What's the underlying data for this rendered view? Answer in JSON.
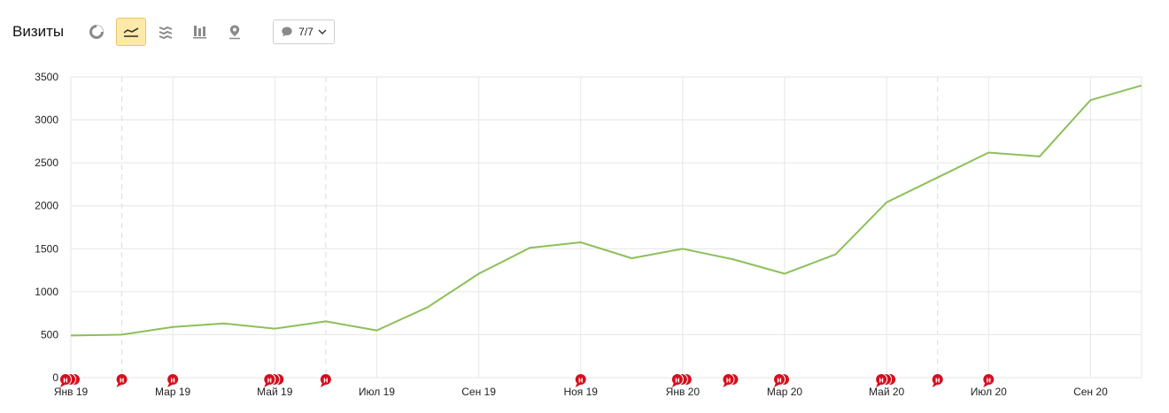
{
  "header": {
    "title": "Визиты",
    "notes_filter": "7/7"
  },
  "toolbar": {
    "buttons": [
      {
        "icon": "pie-chart-icon",
        "active": false
      },
      {
        "icon": "line-chart-icon",
        "active": true
      },
      {
        "icon": "area-chart-icon",
        "active": false
      },
      {
        "icon": "column-chart-icon",
        "active": false
      },
      {
        "icon": "map-pin-icon",
        "active": false
      }
    ]
  },
  "colors": {
    "line": "#8cc05a",
    "grid": "#e6e6e6",
    "marker": "#d40f1f",
    "active_button": "#fdeaa8"
  },
  "chart_data": {
    "type": "line",
    "ylim": [
      0,
      3500
    ],
    "yticks": [
      "0",
      "500",
      "1000",
      "1500",
      "2000",
      "2500",
      "3000",
      "3500"
    ],
    "xtick_labels": [
      "Янв 19",
      "Мар 19",
      "Май 19",
      "Июл 19",
      "Сен 19",
      "Ноя 19",
      "Янв 20",
      "Мар 20",
      "Май 20",
      "Июл 20",
      "Сен 20"
    ],
    "x": [
      "2019-01",
      "2019-02",
      "2019-03",
      "2019-04",
      "2019-05",
      "2019-06",
      "2019-07",
      "2019-08",
      "2019-09",
      "2019-10",
      "2019-11",
      "2019-12",
      "2020-01",
      "2020-02",
      "2020-03",
      "2020-04",
      "2020-05",
      "2020-06",
      "2020-07",
      "2020-08",
      "2020-09",
      "2020-10"
    ],
    "series": [
      {
        "values": [
          490,
          500,
          590,
          630,
          570,
          655,
          550,
          820,
          1210,
          1510,
          1575,
          1390,
          1500,
          1375,
          1210,
          1435,
          2040,
          2330,
          2620,
          2575,
          3230,
          3400
        ]
      }
    ],
    "annotations": {
      "label": "н",
      "months": [
        "2019-01",
        "2019-02",
        "2019-03",
        "2019-05",
        "2019-06",
        "2019-11",
        "2020-01",
        "2020-02",
        "2020-03",
        "2020-05",
        "2020-06",
        "2020-07"
      ],
      "counts": [
        3,
        1,
        1,
        3,
        1,
        1,
        3,
        2,
        2,
        3,
        1,
        1
      ]
    },
    "grid": true,
    "legend": "none"
  }
}
